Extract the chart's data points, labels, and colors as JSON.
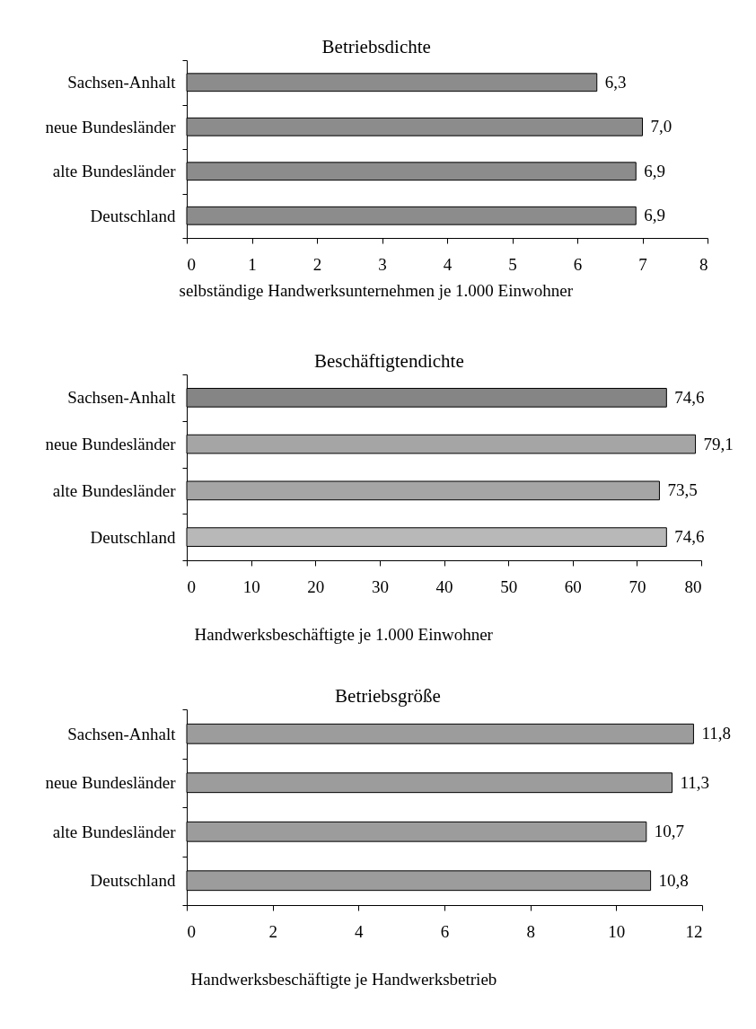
{
  "chart_data": [
    {
      "type": "bar",
      "orientation": "horizontal",
      "title": "Betriebsdichte",
      "xlabel": "selbständige Handwerksunternehmen je 1.000 Einwohner",
      "categories": [
        "Sachsen-Anhalt",
        "neue Bundesländer",
        "alte Bundesländer",
        "Deutschland"
      ],
      "values": [
        6.3,
        7.0,
        6.9,
        6.9
      ],
      "value_labels": [
        "6,3",
        "7,0",
        "6,9",
        "6,9"
      ],
      "colors": [
        "#8c8c8c",
        "#8c8c8c",
        "#8c8c8c",
        "#8c8c8c"
      ],
      "xlim": [
        0,
        8
      ],
      "xticks": [
        0,
        1,
        2,
        3,
        4,
        5,
        6,
        7,
        8
      ]
    },
    {
      "type": "bar",
      "orientation": "horizontal",
      "title": "Beschäftigtendichte",
      "xlabel": "Handwerksbeschäftigte je 1.000 Einwohner",
      "categories": [
        "Sachsen-Anhalt",
        "neue Bundesländer",
        "alte Bundesländer",
        "Deutschland"
      ],
      "values": [
        74.6,
        79.1,
        73.5,
        74.6
      ],
      "value_labels": [
        "74,6",
        "79,1",
        "73,5",
        "74,6"
      ],
      "colors": [
        "#858585",
        "#a5a5a5",
        "#a5a5a5",
        "#b8b8b8"
      ],
      "xlim": [
        0,
        80
      ],
      "xticks": [
        0,
        10,
        20,
        30,
        40,
        50,
        60,
        70,
        80
      ]
    },
    {
      "type": "bar",
      "orientation": "horizontal",
      "title": "Betriebsgröße",
      "xlabel": "Handwerksbeschäftigte je Handwerksbetrieb",
      "categories": [
        "Sachsen-Anhalt",
        "neue Bundesländer",
        "alte Bundesländer",
        "Deutschland"
      ],
      "values": [
        11.8,
        11.3,
        10.7,
        10.8
      ],
      "value_labels": [
        "11,8",
        "11,3",
        "10,7",
        "10,8"
      ],
      "colors": [
        "#9c9c9c",
        "#9c9c9c",
        "#9c9c9c",
        "#9c9c9c"
      ],
      "xlim": [
        0,
        12
      ],
      "xticks": [
        0,
        2,
        4,
        6,
        8,
        10,
        12
      ]
    }
  ]
}
